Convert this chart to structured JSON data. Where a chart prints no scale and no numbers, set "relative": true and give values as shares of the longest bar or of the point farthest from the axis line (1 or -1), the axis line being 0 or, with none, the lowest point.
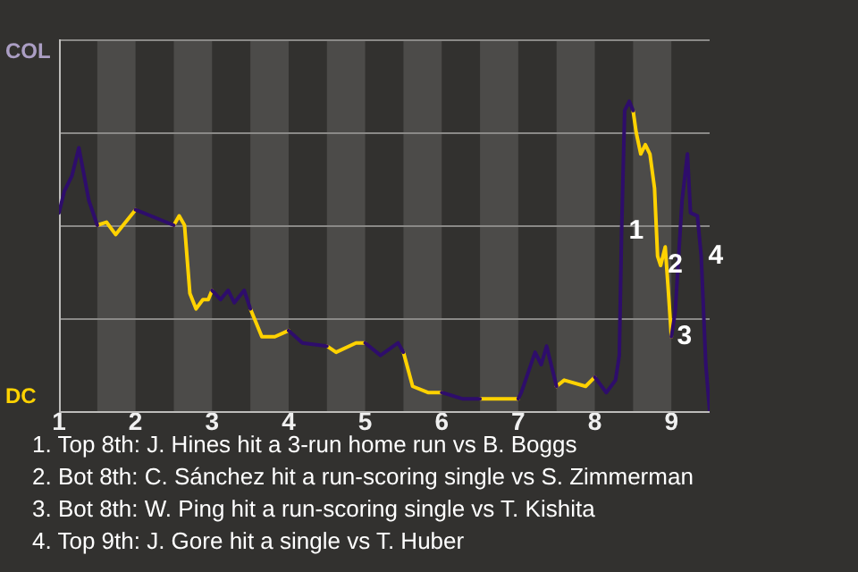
{
  "chart_data": {
    "type": "line",
    "relative": true,
    "xlim": [
      1,
      9.5
    ],
    "xticks": [
      1,
      2,
      3,
      4,
      5,
      6,
      7,
      8,
      9
    ],
    "grid": "y",
    "legend": false,
    "marker": "none",
    "line_style": "solid",
    "bands": [
      {
        "axis": "x",
        "from": 1.5,
        "to": 2,
        "color": "#4c4b49"
      },
      {
        "axis": "x",
        "from": 2.5,
        "to": 3,
        "color": "#4c4b49"
      },
      {
        "axis": "x",
        "from": 3.5,
        "to": 4,
        "color": "#4c4b49"
      },
      {
        "axis": "x",
        "from": 4.5,
        "to": 5,
        "color": "#4c4b49"
      },
      {
        "axis": "x",
        "from": 5.5,
        "to": 6,
        "color": "#4c4b49"
      },
      {
        "axis": "x",
        "from": 6.5,
        "to": 7,
        "color": "#4c4b49"
      },
      {
        "axis": "x",
        "from": 7.5,
        "to": 8,
        "color": "#4c4b49"
      },
      {
        "axis": "x",
        "from": 8.5,
        "to": 9,
        "color": "#4c4b49"
      }
    ],
    "series": [
      {
        "color": "#2e0d6b",
        "x": [
          1,
          1.07,
          1.17,
          1.26,
          1.39,
          1.5,
          null,
          2,
          2.5,
          null,
          3,
          3.11,
          3.21,
          3.29,
          3.42,
          3.5,
          null,
          4,
          4.18,
          4.5,
          null,
          5,
          5.2,
          5.43,
          5.5,
          null,
          6,
          6.27,
          6.5,
          null,
          7,
          7.04,
          7.22,
          7.3,
          7.37,
          7.5,
          null,
          8,
          8.15,
          8.27,
          8.32,
          8.35,
          8.39,
          8.45,
          8.5,
          null,
          9,
          9.05,
          9.14,
          9.21,
          9.25,
          9.34,
          9.39,
          9.45,
          9.5
        ],
        "values": [
          0.64,
          0.71,
          0.76,
          0.85,
          0.68,
          0.6,
          null,
          0.65,
          0.6,
          null,
          0.39,
          0.36,
          0.39,
          0.35,
          0.39,
          0.33,
          null,
          0.26,
          0.22,
          0.21,
          null,
          0.22,
          0.18,
          0.22,
          0.19,
          null,
          0.06,
          0.04,
          0.04,
          null,
          0.04,
          0.06,
          0.19,
          0.15,
          0.21,
          0.08,
          null,
          0.11,
          0.06,
          0.1,
          0.18,
          0.58,
          0.97,
          1,
          0.97,
          null,
          0.24,
          0.32,
          0.68,
          0.83,
          0.64,
          0.63,
          0.5,
          0.15,
          0
        ]
      },
      {
        "color": "#ffd200",
        "x": [
          1.5,
          1.62,
          1.74,
          2,
          null,
          2.5,
          2.57,
          2.64,
          2.71,
          2.79,
          2.88,
          2.95,
          3,
          null,
          3.5,
          3.65,
          3.82,
          4,
          null,
          4.5,
          4.62,
          4.88,
          5,
          null,
          5.5,
          5.62,
          5.82,
          5.98,
          6,
          null,
          6.5,
          7,
          null,
          7.5,
          7.6,
          7.88,
          8,
          null,
          8.5,
          8.54,
          8.6,
          8.66,
          8.72,
          8.78,
          8.82,
          8.86,
          8.92,
          8.96,
          9
        ],
        "values": [
          0.6,
          0.61,
          0.57,
          0.65,
          null,
          0.6,
          0.63,
          0.6,
          0.38,
          0.33,
          0.36,
          0.36,
          0.39,
          null,
          0.33,
          0.24,
          0.24,
          0.26,
          null,
          0.21,
          0.19,
          0.22,
          0.22,
          null,
          0.19,
          0.08,
          0.06,
          0.06,
          0.06,
          null,
          0.04,
          0.04,
          null,
          0.08,
          0.1,
          0.08,
          0.11,
          null,
          0.97,
          0.9,
          0.83,
          0.86,
          0.83,
          0.72,
          0.5,
          0.47,
          0.53,
          0.39,
          0.24
        ]
      }
    ],
    "annotations": [
      "COL",
      "DC",
      {
        "text": "1",
        "x": 8.35,
        "y": 0.58
      },
      {
        "text": "2",
        "x": 8.86,
        "y": 0.47
      },
      {
        "text": "3",
        "x": 8.98,
        "y": 0.24
      },
      {
        "text": "4",
        "x": 9.39,
        "y": 0.5
      },
      "1. Top 8th: J. Hines hit a 3-run home run vs B. Boggs",
      "2. Bot 8th: C. Sánchez hit a run-scoring single vs S. Zimmerman",
      "3. Bot 8th: W. Ping hit a run-scoring single vs T. Kishita",
      "4. Top 9th: J. Gore hit a single vs T. Huber"
    ]
  }
}
